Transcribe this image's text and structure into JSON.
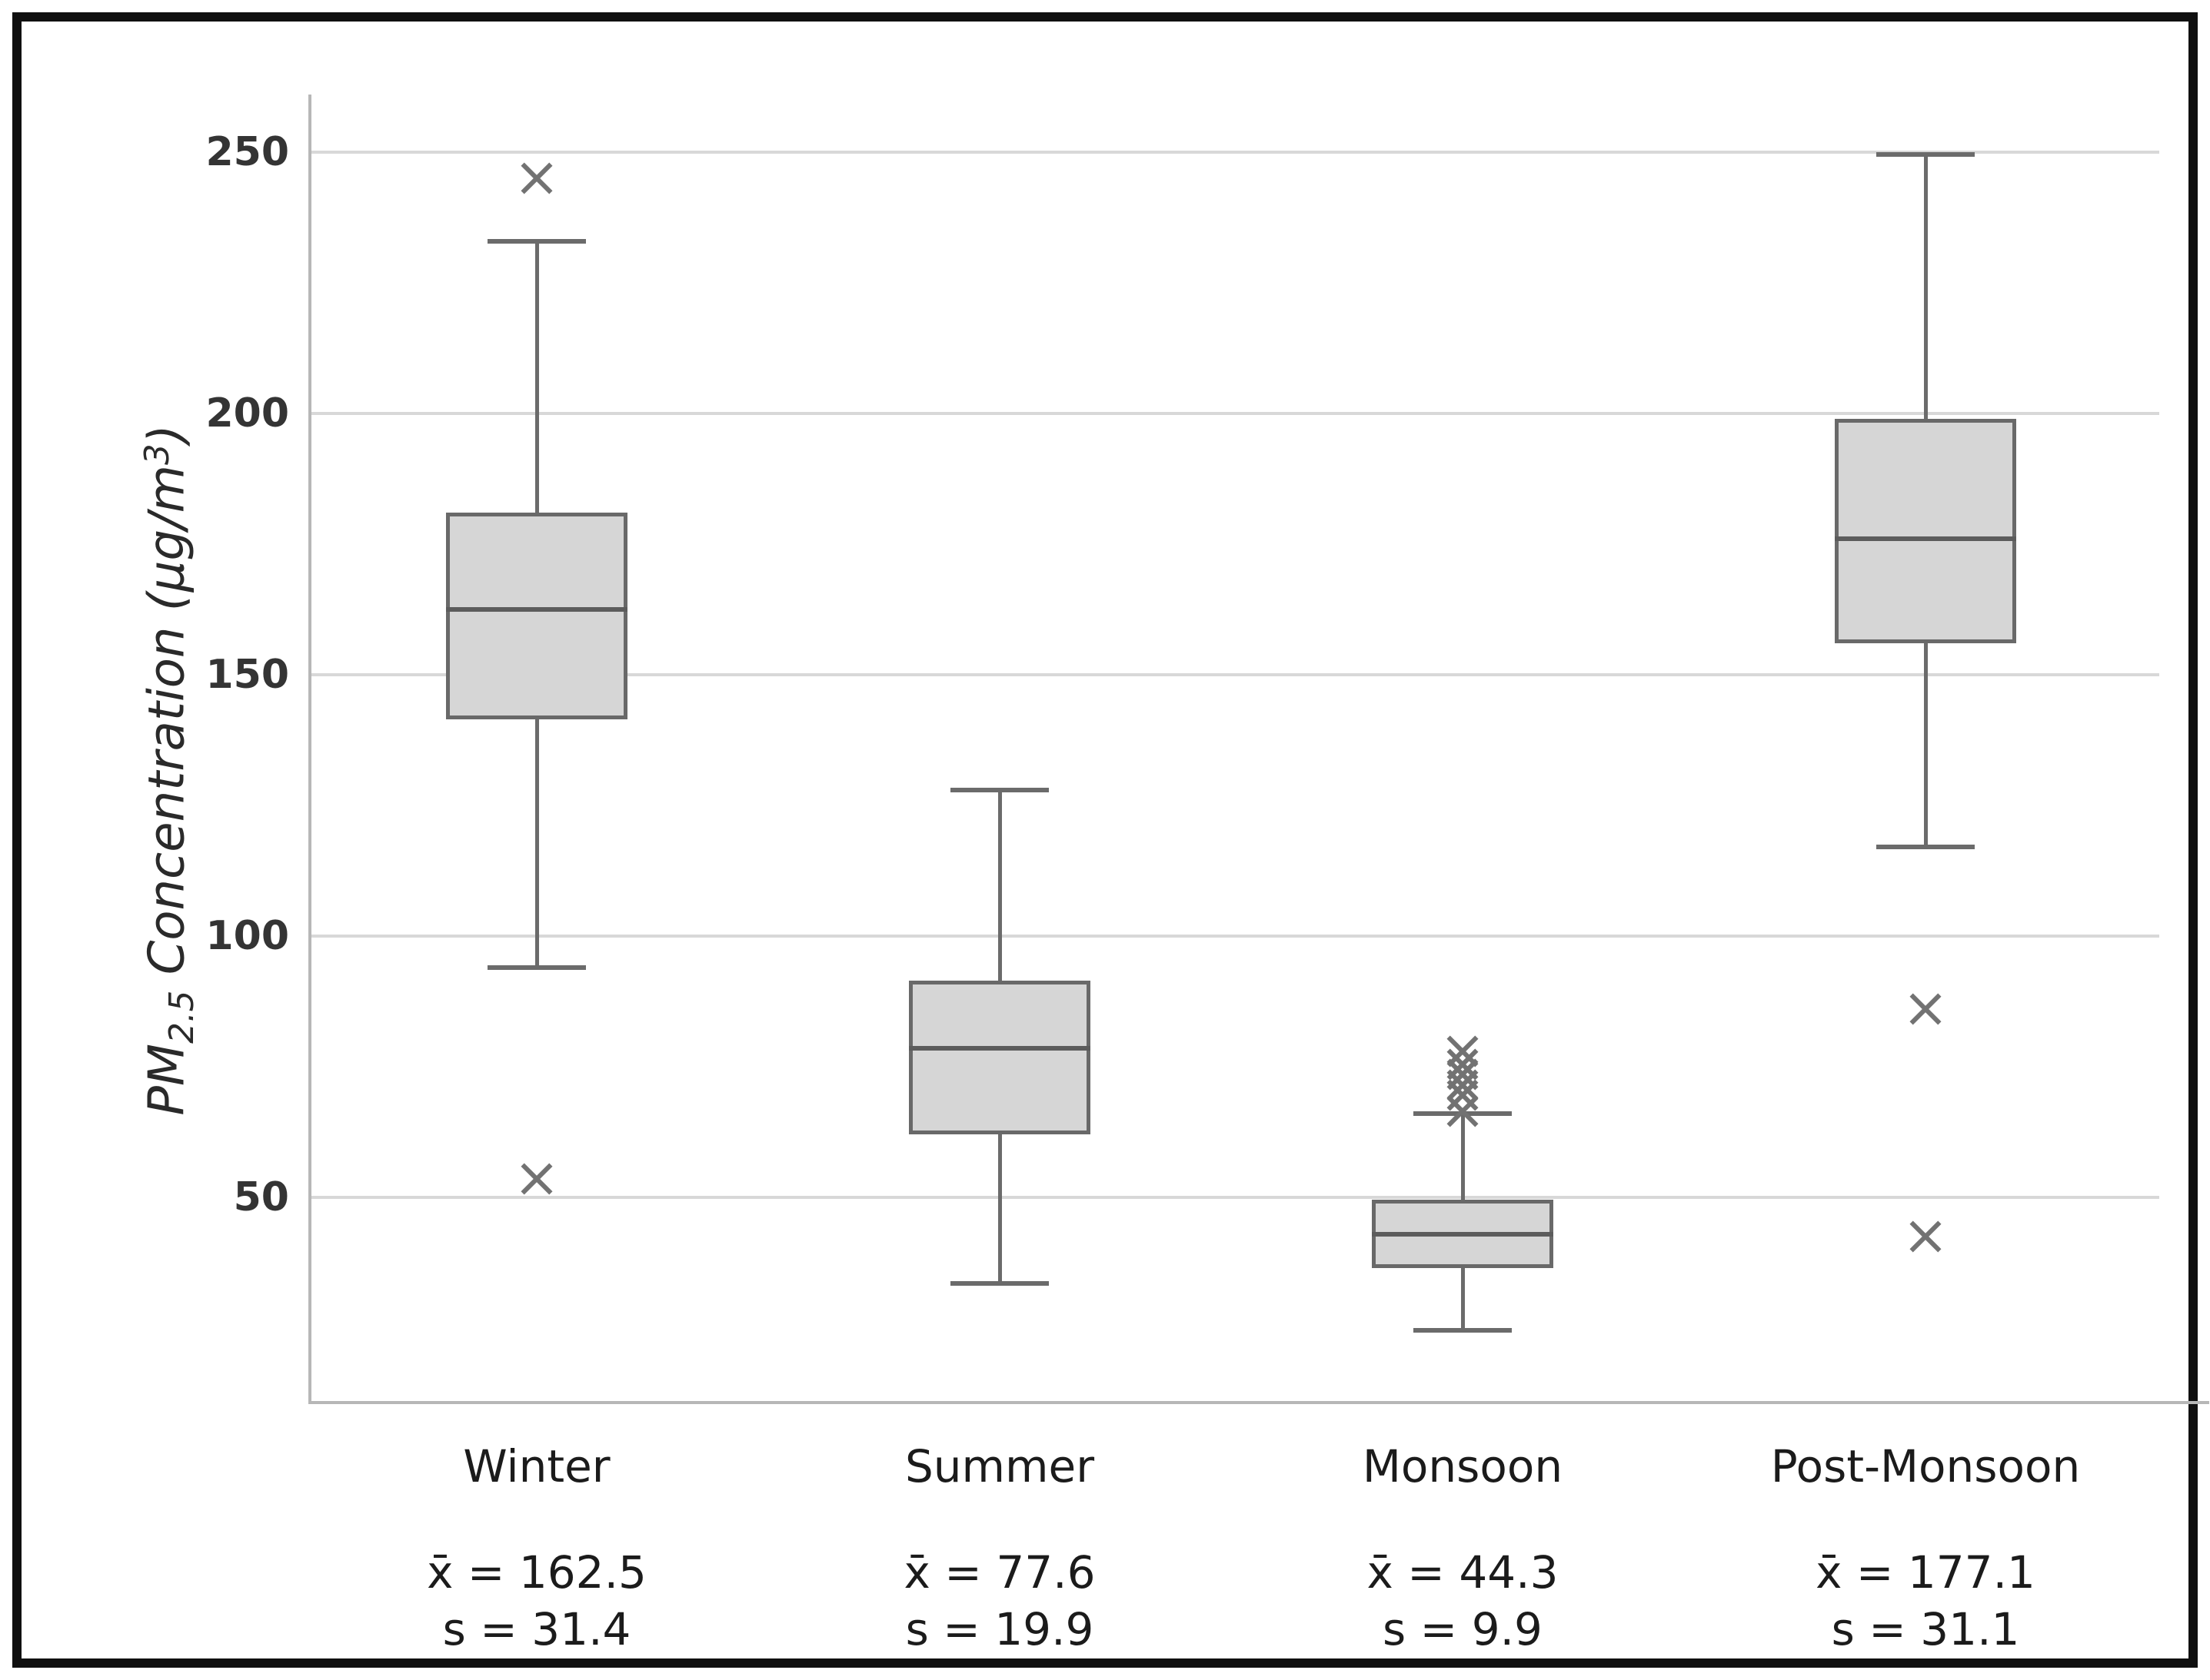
{
  "figure": {
    "y_axis": {
      "label_prefix": "PM",
      "label_sub": "2.5",
      "label_mid": " Concentration (μg/m",
      "label_sup": "3",
      "label_close": ")"
    },
    "colors": {
      "box_fill": "#d6d6d6",
      "box_edge": "#696969",
      "median_line": "#5c5c5c",
      "whisker": "#6b6b6b",
      "outlier_marker": "#727272",
      "gridline": "#d8d8d8",
      "axis_spine": "#b7b7b7",
      "text": "#1b1b1b",
      "frame_border": "#101010"
    }
  },
  "chart_data": {
    "type": "boxplot",
    "title": "",
    "xlabel": "",
    "ylabel": "PM2.5 Concentration (μg/m³)",
    "ylim": [
      11,
      261
    ],
    "yticks": [
      250,
      200,
      150,
      100,
      50
    ],
    "grid": "horizontal",
    "legend": "none",
    "categories": [
      "Winter",
      "Summer",
      "Monsoon",
      "Post-Monsoon"
    ],
    "series": [
      {
        "name": "Winter",
        "whisker_low": 94,
        "q1": 141.5,
        "median": 162.5,
        "q3": 181,
        "whisker_high": 233,
        "outliers": [
          245,
          53.5
        ],
        "mean": 162.5,
        "sd": 31.4,
        "mean_label": "x̄ = 162.5",
        "sd_label": "s = 31.4"
      },
      {
        "name": "Summer",
        "whisker_low": 33.5,
        "q1": 62,
        "median": 78.5,
        "q3": 91.5,
        "whisker_high": 128,
        "outliers": [],
        "mean": 77.6,
        "sd": 19.9,
        "mean_label": "x̄ = 77.6",
        "sd_label": "s = 19.9"
      },
      {
        "name": "Monsoon",
        "whisker_low": 24.5,
        "q1": 36.5,
        "median": 43,
        "q3": 49.5,
        "whisker_high": 66,
        "outliers": [
          78,
          75.5,
          73.5,
          71.5,
          69.5,
          66.5
        ],
        "mean": 44.3,
        "sd": 9.9,
        "mean_label": "x̄ = 44.3",
        "sd_label": "s = 9.9"
      },
      {
        "name": "Post-Monsoon",
        "whisker_low": 117,
        "q1": 156,
        "median": 176,
        "q3": 199,
        "whisker_high": 249.5,
        "outliers": [
          86,
          42.5
        ],
        "mean": 177.1,
        "sd": 31.1,
        "mean_label": "x̄ = 177.1",
        "sd_label": "s = 31.1"
      }
    ]
  }
}
